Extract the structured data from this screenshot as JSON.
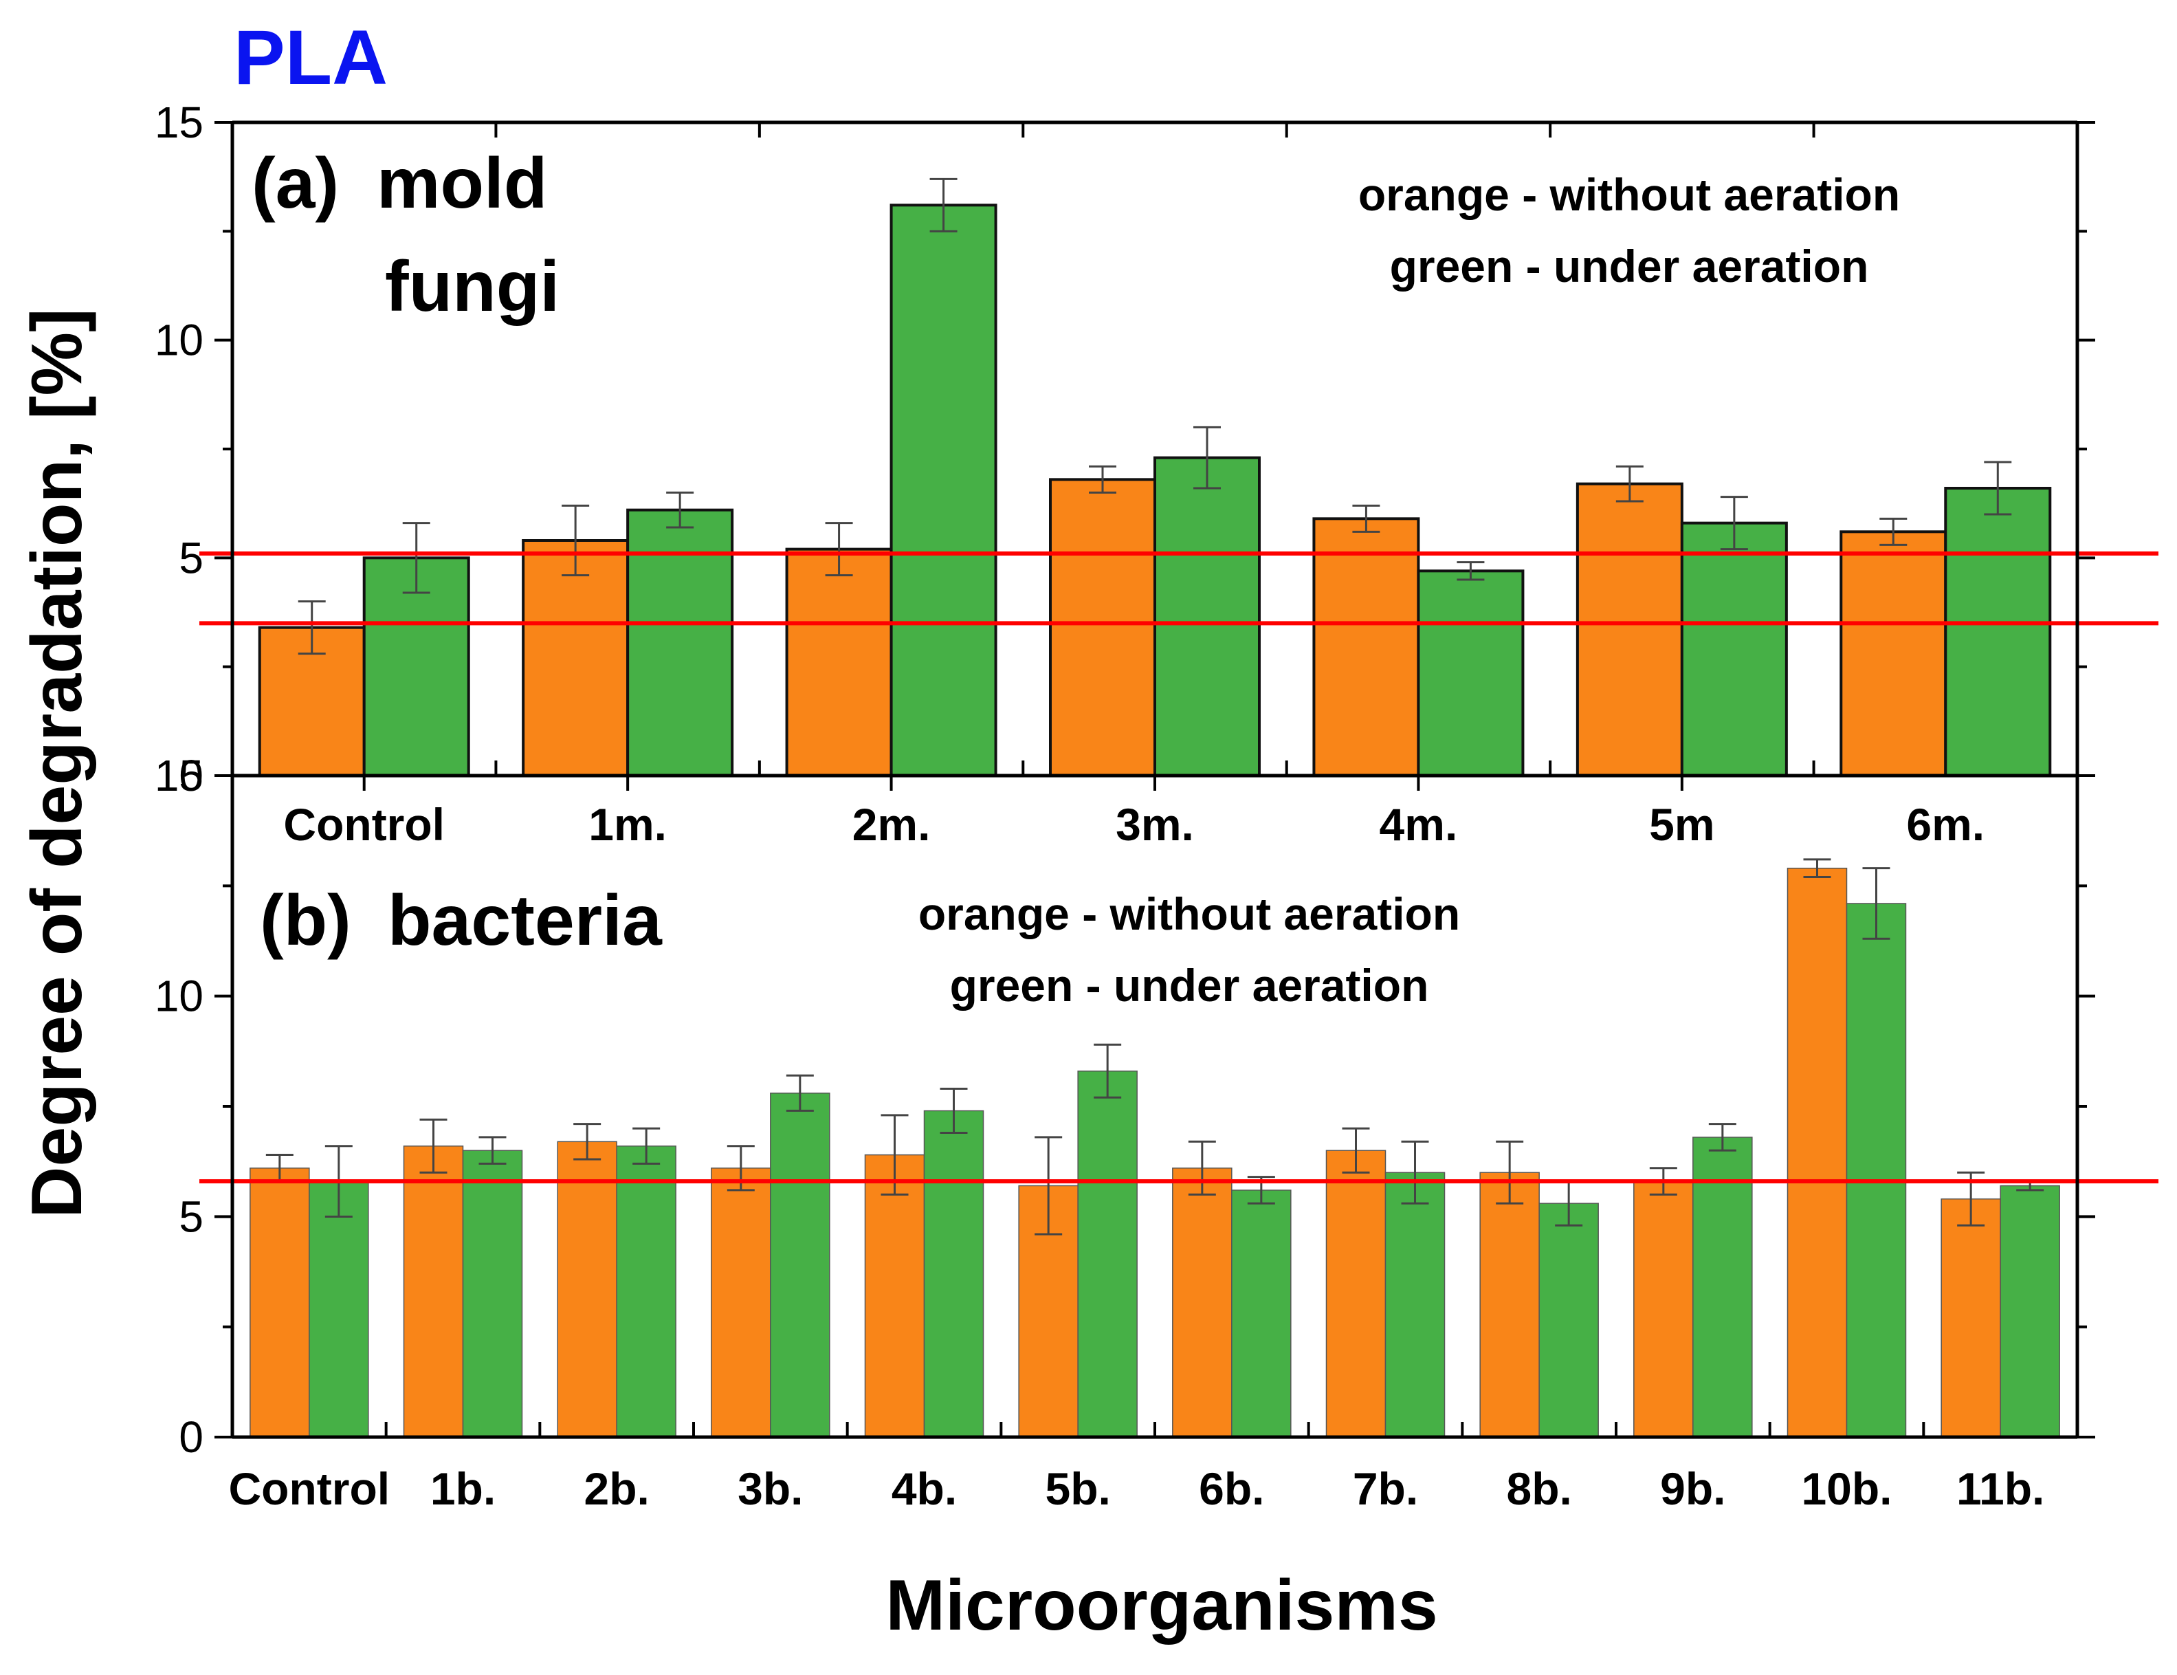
{
  "figure_title": "PLA",
  "title_color": "#0a14f0",
  "ylabel": "Degree of degradation, [%]",
  "xlabel": "Microorganisms",
  "colors": {
    "orange": "#f98518",
    "green": "#46b046",
    "threshold": "#ff0000"
  },
  "chart_data": [
    {
      "type": "bar",
      "panel": "a",
      "panel_label": "(a)",
      "title_line1": "mold",
      "title_line2": "fungi",
      "legend": [
        "orange - without aeration",
        "green - under aeration"
      ],
      "categories": [
        "Control",
        "1m.",
        "2m.",
        "3m.",
        "4m.",
        "5m",
        "6m."
      ],
      "series": [
        {
          "name": "without aeration",
          "color": "#f98518",
          "values": [
            3.4,
            5.4,
            5.2,
            6.8,
            5.9,
            6.7,
            5.6
          ],
          "errors": [
            0.6,
            0.8,
            0.6,
            0.3,
            0.3,
            0.4,
            0.3
          ]
        },
        {
          "name": "under aeration",
          "color": "#46b046",
          "values": [
            5.0,
            6.1,
            13.1,
            7.3,
            4.7,
            5.8,
            6.6
          ],
          "errors": [
            0.8,
            0.4,
            0.6,
            0.7,
            0.2,
            0.6,
            0.6
          ]
        }
      ],
      "hlines": [
        5.1,
        3.5
      ],
      "ylim": [
        0,
        15
      ],
      "yticks": [
        "0",
        "5",
        "10",
        "15"
      ]
    },
    {
      "type": "bar",
      "panel": "b",
      "panel_label": "(b)",
      "title_line1": "bacteria",
      "legend": [
        "orange - without aeration",
        "green - under aeration"
      ],
      "categories": [
        "Control",
        "1b.",
        "2b.",
        "3b.",
        "4b.",
        "5b.",
        "6b.",
        "7b.",
        "8b.",
        "9b.",
        "10b.",
        "11b."
      ],
      "series": [
        {
          "name": "without aeration",
          "color": "#f98518",
          "values": [
            6.1,
            6.6,
            6.7,
            6.1,
            6.4,
            5.7,
            6.1,
            6.5,
            6.0,
            5.8,
            12.9,
            5.4
          ],
          "errors": [
            0.3,
            0.6,
            0.4,
            0.5,
            0.9,
            1.1,
            0.6,
            0.5,
            0.7,
            0.3,
            0.2,
            0.6
          ]
        },
        {
          "name": "under aeration",
          "color": "#46b046",
          "values": [
            5.8,
            6.5,
            6.6,
            7.8,
            7.4,
            8.3,
            5.6,
            6.0,
            5.3,
            6.8,
            12.1,
            5.7
          ],
          "errors": [
            0.8,
            0.3,
            0.4,
            0.4,
            0.5,
            0.6,
            0.3,
            0.7,
            0.5,
            0.3,
            0.8,
            0.1
          ]
        }
      ],
      "hlines": [
        5.8
      ],
      "ylim": [
        0,
        15
      ],
      "yticks": [
        "0",
        "5",
        "10",
        "15"
      ]
    }
  ]
}
